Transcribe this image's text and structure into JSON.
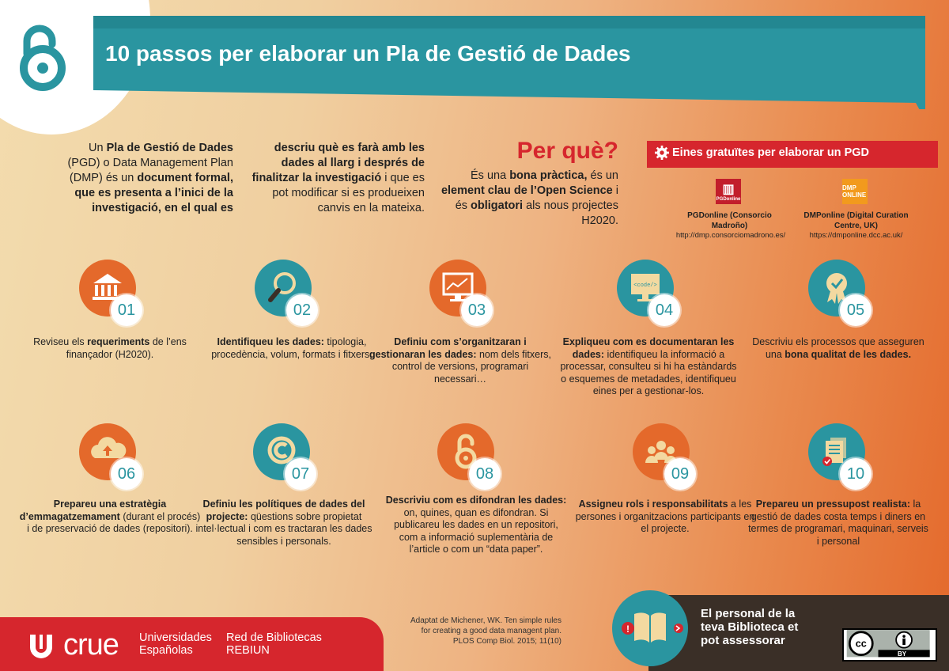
{
  "title": "10 passos per elaborar un Pla de Gestió de Dades",
  "colors": {
    "teal": "#2a95a0",
    "orange": "#e4692b",
    "red": "#d6262d",
    "dark": "#3a2f27"
  },
  "intro": {
    "col1": {
      "p1": "Un ",
      "b1": "Pla de Gestió de Dades",
      "p2": " (PGD) o Data Management Plan (DMP) és un ",
      "b2": "document formal, que es presenta a l’inici de la investigació, en el qual es"
    },
    "col2": {
      "b1": "descriu què es farà amb les dades al llarg i després de finalitzar la investigació",
      "p1": " i que es pot modificar si es produeixen canvis en la mateixa."
    }
  },
  "why": {
    "heading": "Per què?",
    "p1": "És una ",
    "b1": "bona pràctica,",
    "p2": " és un ",
    "b2": "element clau de l’Open Science",
    "p3": " i és ",
    "b3": "obligatori",
    "p4": " als nous projectes H2020."
  },
  "tools": {
    "label": "Eines gratuïtes per elaborar un PGD",
    "items": [
      {
        "logo": "PGDonline",
        "name": "PGDonline (Consorcio Madroño)",
        "url": "http://dmp.consorciomadrono.es/"
      },
      {
        "logo": "DMP ONLINE",
        "name": "DMPonline (Digital Curation Centre, UK)",
        "url": "https://dmponline.dcc.ac.uk/"
      }
    ]
  },
  "steps": [
    {
      "num": "01",
      "icon": "institution-icon",
      "pre": "Reviseu els ",
      "b": "requeriments",
      "post": " de l’ens finançador (H2020)."
    },
    {
      "num": "02",
      "icon": "magnifier-icon",
      "pre": "",
      "b": "Identifiqueu les dades:",
      "post": " tipologia, procedència, volum, formats i fitxers."
    },
    {
      "num": "03",
      "icon": "monitor-chart-icon",
      "pre": "",
      "b": "Definiu com s’organitzaran i gestionaran les dades:",
      "post": " nom dels fitxers, control de versions, programari necessari…"
    },
    {
      "num": "04",
      "icon": "monitor-code-icon",
      "icon_text": "<code/>",
      "pre": "",
      "b": "Expliqueu com es documentaran les dades:",
      "post": " identifiqueu la informació a processar, consulteu si hi ha estàndards o esquemes de metadades, identifiqueu eines per a gestionar-los."
    },
    {
      "num": "05",
      "icon": "award-icon",
      "pre": "Descriviu els processos que asseguren una ",
      "b": "bona qualitat de les dades.",
      "post": ""
    },
    {
      "num": "06",
      "icon": "cloud-upload-icon",
      "pre": "",
      "b": "Prepareu una estratègia d’emmagatzemament",
      "post": " (durant el procés) i de preservació de dades (repositori)."
    },
    {
      "num": "07",
      "icon": "copyright-icon",
      "pre": "",
      "b": "Definiu les polítiques de dades del projecte:",
      "post": " qüestions sobre propietat intel·lectual i com es tractaran les dades sensibles i personals."
    },
    {
      "num": "08",
      "icon": "open-access-icon",
      "pre": "",
      "b": "Descriviu com es difondran les dades:",
      "post": " on, quines, quan es difondran. Si publicareu les dades en un repositori, com a informació suplementària de l’article o com un “data paper”."
    },
    {
      "num": "09",
      "icon": "people-icon",
      "pre": "",
      "b": "Assigneu rols i responsabilitats",
      "post": " a les persones i organitzacions participants en el projecte."
    },
    {
      "num": "10",
      "icon": "documents-icon",
      "pre": "",
      "b": "Prepareu un pressupost realista:",
      "post": " la gestió de dades costa temps i diners en termes de programari, maquinari, serveis i personal"
    }
  ],
  "footer": {
    "crue": "crue",
    "univ1": "Universidades",
    "univ2": "Españolas",
    "red1": "Red de Bibliotecas",
    "red2": "REBIUN",
    "citation": "Adaptat de Michener, WK. Ten simple rules for creating a good data managent plan. PLOS Comp Biol. 2015; 11(10)",
    "advice": "El personal de la teva Biblioteca et pot assessorar",
    "cc": "BY"
  }
}
